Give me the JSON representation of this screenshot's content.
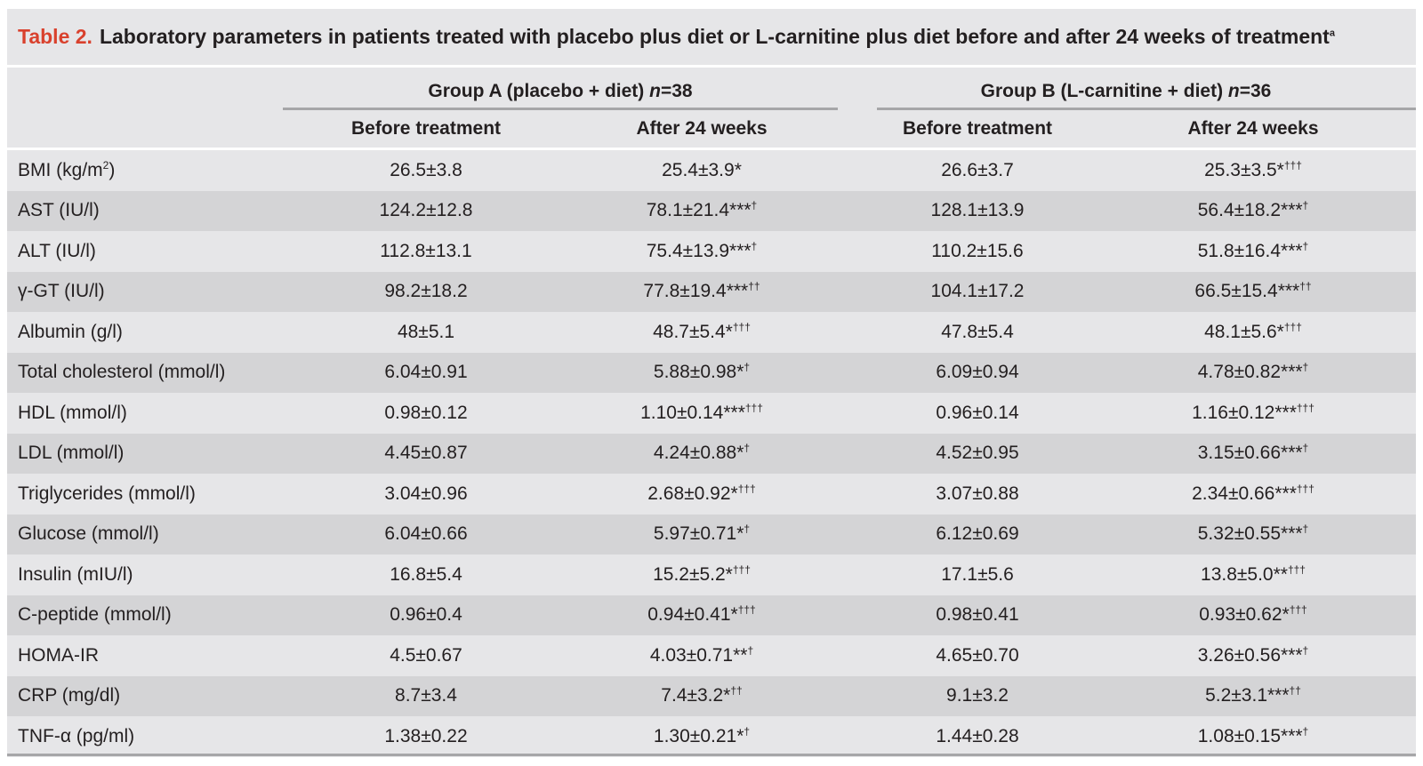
{
  "title": {
    "label": "Table 2.",
    "text": "Laboratory parameters in patients treated with placebo plus diet or L-carnitine plus diet before and after 24 weeks of treatment",
    "footnote_mark": "a"
  },
  "groups": [
    {
      "label": "Group A (placebo + diet) ",
      "n_label": "n",
      "n_value": "=38"
    },
    {
      "label": "Group B (L-carnitine + diet) ",
      "n_label": "n",
      "n_value": "=36"
    }
  ],
  "columns": [
    "Before treatment",
    "After 24 weeks",
    "Before treatment",
    "After 24 weeks"
  ],
  "rows": [
    {
      "label": "BMI (kg/m",
      "label_sup": "2",
      "label_end": ")",
      "cells": [
        {
          "v": "26.5±3.8",
          "m": ""
        },
        {
          "v": "25.4±3.9*",
          "m": ""
        },
        {
          "v": "26.6±3.7",
          "m": ""
        },
        {
          "v": "25.3±3.5*",
          "m": "†††"
        }
      ]
    },
    {
      "label": "AST (IU/l)",
      "label_sup": "",
      "label_end": "",
      "cells": [
        {
          "v": "124.2±12.8",
          "m": ""
        },
        {
          "v": "78.1±21.4***",
          "m": "†"
        },
        {
          "v": "128.1±13.9",
          "m": ""
        },
        {
          "v": "56.4±18.2***",
          "m": "†"
        }
      ]
    },
    {
      "label": "ALT (IU/l)",
      "label_sup": "",
      "label_end": "",
      "cells": [
        {
          "v": "112.8±13.1",
          "m": ""
        },
        {
          "v": "75.4±13.9***",
          "m": "†"
        },
        {
          "v": "110.2±15.6",
          "m": ""
        },
        {
          "v": "51.8±16.4***",
          "m": "†"
        }
      ]
    },
    {
      "label": "γ-GT (IU/l)",
      "label_sup": "",
      "label_end": "",
      "cells": [
        {
          "v": "98.2±18.2",
          "m": ""
        },
        {
          "v": "77.8±19.4***",
          "m": "††"
        },
        {
          "v": "104.1±17.2",
          "m": ""
        },
        {
          "v": "66.5±15.4***",
          "m": "††"
        }
      ]
    },
    {
      "label": "Albumin (g/l)",
      "label_sup": "",
      "label_end": "",
      "cells": [
        {
          "v": "48±5.1",
          "m": ""
        },
        {
          "v": "48.7±5.4*",
          "m": "†††"
        },
        {
          "v": "47.8±5.4",
          "m": ""
        },
        {
          "v": "48.1±5.6*",
          "m": "†††"
        }
      ]
    },
    {
      "label": "Total cholesterol (mmol/l)",
      "label_sup": "",
      "label_end": "",
      "cells": [
        {
          "v": "6.04±0.91",
          "m": ""
        },
        {
          "v": "5.88±0.98*",
          "m": "†"
        },
        {
          "v": "6.09±0.94",
          "m": ""
        },
        {
          "v": "4.78±0.82***",
          "m": "†"
        }
      ]
    },
    {
      "label": "HDL (mmol/l)",
      "label_sup": "",
      "label_end": "",
      "cells": [
        {
          "v": "0.98±0.12",
          "m": ""
        },
        {
          "v": "1.10±0.14***",
          "m": "†††"
        },
        {
          "v": "0.96±0.14",
          "m": ""
        },
        {
          "v": "1.16±0.12***",
          "m": "†††"
        }
      ]
    },
    {
      "label": "LDL (mmol/l)",
      "label_sup": "",
      "label_end": "",
      "cells": [
        {
          "v": "4.45±0.87",
          "m": ""
        },
        {
          "v": "4.24±0.88*",
          "m": "†"
        },
        {
          "v": "4.52±0.95",
          "m": ""
        },
        {
          "v": "3.15±0.66***",
          "m": "†"
        }
      ]
    },
    {
      "label": "Triglycerides (mmol/l)",
      "label_sup": "",
      "label_end": "",
      "cells": [
        {
          "v": "3.04±0.96",
          "m": ""
        },
        {
          "v": "2.68±0.92*",
          "m": "†††"
        },
        {
          "v": "3.07±0.88",
          "m": ""
        },
        {
          "v": "2.34±0.66***",
          "m": "†††"
        }
      ]
    },
    {
      "label": "Glucose (mmol/l)",
      "label_sup": "",
      "label_end": "",
      "cells": [
        {
          "v": "6.04±0.66",
          "m": ""
        },
        {
          "v": "5.97±0.71*",
          "m": "†"
        },
        {
          "v": "6.12±0.69",
          "m": ""
        },
        {
          "v": "5.32±0.55***",
          "m": "†"
        }
      ]
    },
    {
      "label": "Insulin (mIU/l)",
      "label_sup": "",
      "label_end": "",
      "cells": [
        {
          "v": "16.8±5.4",
          "m": ""
        },
        {
          "v": "15.2±5.2*",
          "m": "†††"
        },
        {
          "v": "17.1±5.6",
          "m": ""
        },
        {
          "v": "13.8±5.0**",
          "m": "†††"
        }
      ]
    },
    {
      "label": "C-peptide (mmol/l)",
      "label_sup": "",
      "label_end": "",
      "cells": [
        {
          "v": "0.96±0.4",
          "m": ""
        },
        {
          "v": "0.94±0.41*",
          "m": "†††"
        },
        {
          "v": "0.98±0.41",
          "m": ""
        },
        {
          "v": "0.93±0.62*",
          "m": "†††"
        }
      ]
    },
    {
      "label": "HOMA-IR",
      "label_sup": "",
      "label_end": "",
      "cells": [
        {
          "v": "4.5±0.67",
          "m": ""
        },
        {
          "v": "4.03±0.71**",
          "m": "†"
        },
        {
          "v": "4.65±0.70",
          "m": ""
        },
        {
          "v": "3.26±0.56***",
          "m": "†"
        }
      ]
    },
    {
      "label": "CRP (mg/dl)",
      "label_sup": "",
      "label_end": "",
      "cells": [
        {
          "v": "8.7±3.4",
          "m": ""
        },
        {
          "v": "7.4±3.2*",
          "m": "††"
        },
        {
          "v": "9.1±3.2",
          "m": ""
        },
        {
          "v": "5.2±3.1***",
          "m": "††"
        }
      ]
    },
    {
      "label": "TNF-α (pg/ml)",
      "label_sup": "",
      "label_end": "",
      "cells": [
        {
          "v": "1.38±0.22",
          "m": ""
        },
        {
          "v": "1.30±0.21*",
          "m": "†"
        },
        {
          "v": "1.44±0.28",
          "m": ""
        },
        {
          "v": "1.08±0.15***",
          "m": "†"
        }
      ]
    }
  ]
}
